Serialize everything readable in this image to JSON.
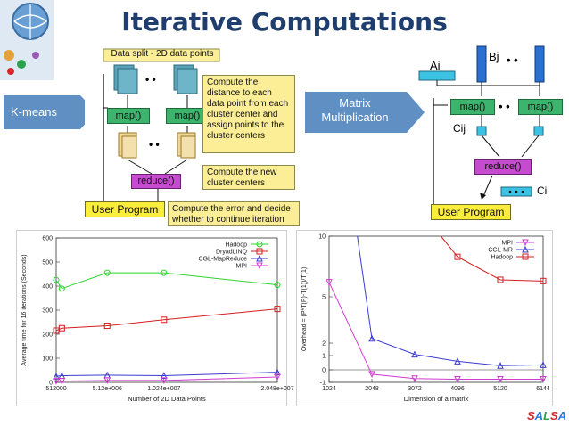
{
  "slide": {
    "title": "Iterative Computations",
    "logo_letters": [
      {
        "ch": "S",
        "color": "#d9262c"
      },
      {
        "ch": "A",
        "color": "#2a7ad1"
      },
      {
        "ch": "L",
        "color": "#2aa24a"
      },
      {
        "ch": "S",
        "color": "#d9262c"
      },
      {
        "ch": "A",
        "color": "#2a7ad1"
      }
    ]
  },
  "kmeans": {
    "label": "K-means",
    "split_label": "Data split - 2D data points",
    "map1": "map()",
    "map2": "map()",
    "dots1": "• •",
    "dots2": "• •",
    "note_map": "Compute the distance to each data point from each cluster center and assign points to the cluster centers",
    "reduce": "reduce()",
    "note_reduce": "Compute the new cluster centers",
    "user_program": "User Program",
    "note_user": "Compute the error and decide whether to continue iteration"
  },
  "matrix": {
    "label": "Matrix Multiplication",
    "ai": "Ai",
    "bj": "Bj",
    "dots_top": "• •",
    "map1": "map()",
    "map2": "map()",
    "dots_mid": "• •",
    "cij": "Cij",
    "reduce": "reduce()",
    "ci": "Ci",
    "user_program": "User Program"
  },
  "chart_data": [
    {
      "type": "line",
      "xlabel": "Number of 2D Data Points",
      "ylabel": "Average time for 16 iterations (Seconds)",
      "ylim": [
        0,
        600
      ],
      "yticks": [
        "0",
        "100",
        "200",
        "300",
        "400",
        "500",
        "600"
      ],
      "xticks": [
        "512000",
        "5.12e+006",
        "1.024e+007",
        "2.048e+007"
      ],
      "xtick_values": [
        512000,
        5120000,
        10240000,
        20480000
      ],
      "xlim": [
        512000,
        20480000
      ],
      "legend": "top-right",
      "series": [
        {
          "name": "Hadoop",
          "color": "#2fd32f",
          "marker": "circle",
          "x": [
            512000,
            1024000,
            5120000,
            10240000,
            20480000
          ],
          "y": [
            425,
            390,
            455,
            455,
            405
          ]
        },
        {
          "name": "DryadLINQ",
          "color": "#d11f1f",
          "marker": "square",
          "x": [
            512000,
            1024000,
            5120000,
            10240000,
            20480000
          ],
          "y": [
            215,
            225,
            235,
            260,
            305
          ]
        },
        {
          "name": "CGL-MapReduce",
          "color": "#3b3bd1",
          "marker": "triangle",
          "x": [
            512000,
            1024000,
            5120000,
            10240000,
            20480000
          ],
          "y": [
            25,
            28,
            30,
            28,
            42
          ]
        },
        {
          "name": "MPI",
          "color": "#d13bd1",
          "marker": "tri-down",
          "x": [
            512000,
            1024000,
            5120000,
            10240000,
            20480000
          ],
          "y": [
            5,
            5,
            8,
            8,
            22
          ]
        }
      ]
    },
    {
      "type": "line",
      "xlabel": "Dimension of a matrix",
      "ylabel": "Overhead = (P*T(P)-T(1))/T(1)",
      "yticks": [
        "-1",
        "0",
        "1",
        "2",
        "5",
        "10"
      ],
      "ytick_values": [
        -1,
        0,
        1,
        2,
        5,
        10
      ],
      "xticks": [
        "1024",
        "2048",
        "3072",
        "4096",
        "5120",
        "6144"
      ],
      "xtick_values": [
        1024,
        2048,
        3072,
        4096,
        5120,
        6144
      ],
      "xlim": [
        1024,
        6144
      ],
      "legend": "top-right",
      "series": [
        {
          "name": "MPI",
          "color": "#d13bd1",
          "marker": "tri-down",
          "x": [
            1024,
            2048,
            3072,
            4096,
            5120,
            6144
          ],
          "y": [
            6.2,
            -0.35,
            -0.7,
            -0.75,
            -0.75,
            -0.75
          ]
        },
        {
          "name": "CGL-MR",
          "color": "#3b3bd1",
          "marker": "triangle",
          "x": [
            1700,
            2048,
            3072,
            4096,
            5120,
            6144
          ],
          "y": [
            10,
            2.3,
            1.1,
            0.6,
            0.3,
            0.35
          ]
        },
        {
          "name": "Hadoop",
          "color": "#d11f1f",
          "marker": "square",
          "x": [
            3700,
            4096,
            5120,
            6144
          ],
          "y": [
            10,
            8.3,
            6.4,
            6.3
          ]
        }
      ]
    }
  ]
}
